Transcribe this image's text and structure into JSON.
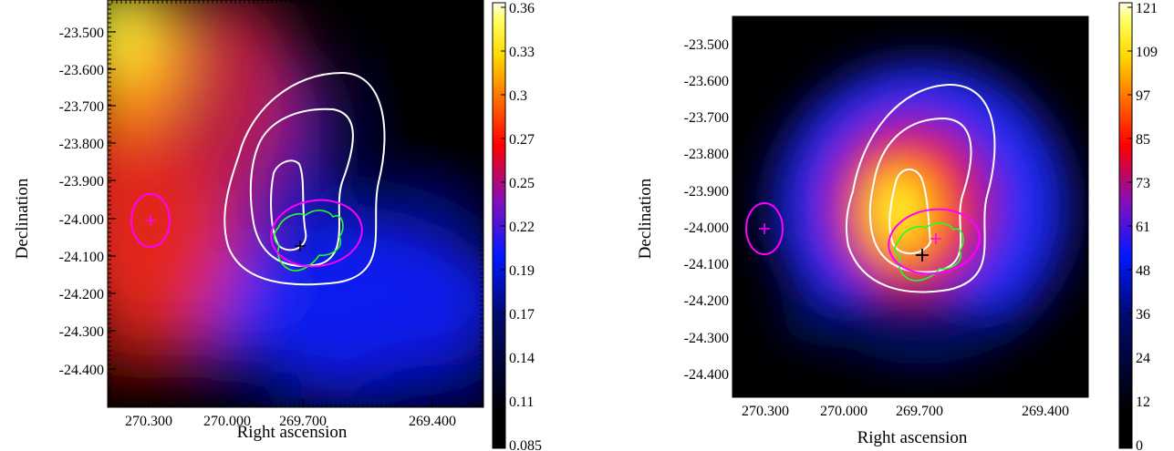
{
  "chart_data": [
    {
      "type": "heatmap",
      "title": "",
      "xlabel": "Right ascension",
      "ylabel": "Declination",
      "x_ticks": [
        "270.300",
        "270.000",
        "269.700",
        "269.400"
      ],
      "y_ticks": [
        "-23.500",
        "-23.600",
        "-23.700",
        "-23.800",
        "-23.900",
        "-24.000",
        "-24.100",
        "-24.200",
        "-24.300",
        "-24.400"
      ],
      "colorbar_ticks": [
        "0.36",
        "0.33",
        "0.3",
        "0.27",
        "0.25",
        "0.22",
        "0.19",
        "0.17",
        "0.14",
        "0.11",
        "0.085"
      ],
      "colorbar_range": [
        0.085,
        0.36
      ],
      "colormap": "black-blue-red-yellow-white",
      "markers": [
        {
          "name": "magenta-cross-west",
          "ra": 270.24,
          "dec": -24.01,
          "color": "#ff00ff"
        },
        {
          "name": "magenta-cross-center",
          "ra": 269.68,
          "dec": -24.05,
          "color": "#ff00ff"
        },
        {
          "name": "black-cross-center",
          "ra": 269.74,
          "dec": -24.08,
          "color": "#000000"
        }
      ],
      "contour_colors": {
        "white": "#ffffff",
        "green": "#00ff00",
        "ellipse": "#ff00ff"
      }
    },
    {
      "type": "heatmap",
      "title": "",
      "xlabel": "Right ascension",
      "ylabel": "Declination",
      "x_ticks": [
        "270.300",
        "270.000",
        "269.700",
        "269.400"
      ],
      "y_ticks": [
        "-23.500",
        "-23.600",
        "-23.700",
        "-23.800",
        "-23.900",
        "-24.000",
        "-24.100",
        "-24.200",
        "-24.300",
        "-24.400"
      ],
      "colorbar_ticks": [
        "121",
        "109",
        "97",
        "85",
        "73",
        "61",
        "48",
        "36",
        "24",
        "12",
        "0"
      ],
      "colorbar_range": [
        0,
        121
      ],
      "colormap": "black-blue-red-yellow-white",
      "markers": [
        {
          "name": "magenta-cross-west",
          "ra": 270.24,
          "dec": -24.01,
          "color": "#ff00ff"
        },
        {
          "name": "magenta-cross-center",
          "ra": 269.68,
          "dec": -24.05,
          "color": "#ff00ff"
        },
        {
          "name": "black-cross-center",
          "ra": 269.74,
          "dec": -24.08,
          "color": "#000000"
        }
      ],
      "contour_colors": {
        "white": "#ffffff",
        "green": "#00ff00",
        "ellipse": "#ff00ff"
      }
    }
  ]
}
